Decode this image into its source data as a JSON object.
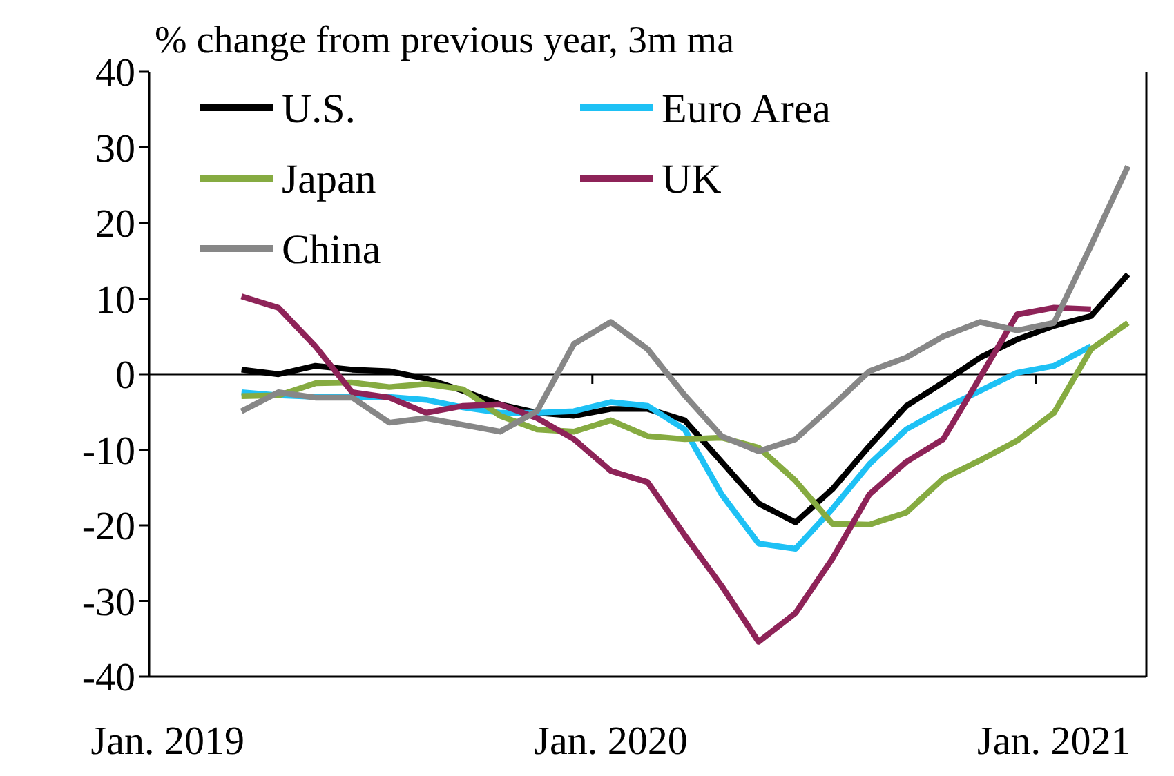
{
  "chart_data": {
    "type": "line",
    "title": "% change from previous year, 3m ma",
    "categories": [
      "Jan. 2019",
      null,
      null,
      null,
      null,
      null,
      null,
      null,
      null,
      null,
      null,
      null,
      "Jan. 2020",
      null,
      null,
      null,
      null,
      null,
      null,
      null,
      null,
      null,
      null,
      null,
      "Jan. 2021",
      null,
      null
    ],
    "series": [
      {
        "name": "U.S.",
        "color": "#000000",
        "values": [
          null,
          null,
          0.6,
          0,
          1.1,
          0.6,
          0.4,
          -0.6,
          -2.2,
          -4,
          -5.1,
          -5.5,
          -4.6,
          -4.6,
          -6.1,
          -11.6,
          -17.1,
          -19.6,
          -15.2,
          -9.5,
          -4.2,
          -1.1,
          2.2,
          4.6,
          6.4,
          7.7,
          13.2
        ]
      },
      {
        "name": "Euro Area",
        "color": "#1ec1f5",
        "values": [
          null,
          null,
          -2.4,
          -2.8,
          -3,
          -3,
          -3,
          -3.4,
          -4.4,
          -5.1,
          -5.1,
          -4.9,
          -3.7,
          -4.2,
          -7.3,
          -15.9,
          -22.4,
          -23.1,
          -17.8,
          -11.9,
          -7.3,
          -4.6,
          -2.2,
          0.2,
          1.1,
          3.7,
          null
        ]
      },
      {
        "name": "Japan",
        "color": "#86ab41",
        "values": [
          null,
          null,
          -2.9,
          -2.8,
          -1.2,
          -1.1,
          -1.7,
          -1.3,
          -2,
          -5.5,
          -7.3,
          -7.6,
          -6.1,
          -8.2,
          -8.6,
          -8.4,
          -9.7,
          -14.1,
          -19.8,
          -19.9,
          -18.3,
          -13.8,
          -11.4,
          -8.8,
          -5.1,
          3.3,
          6.8
        ]
      },
      {
        "name": "UK",
        "color": "#8e2358",
        "values": [
          null,
          null,
          10.3,
          8.8,
          3.7,
          -2.4,
          -3.1,
          -5.1,
          -4.2,
          -4,
          -5.8,
          -8.6,
          -12.8,
          -14.3,
          -21.3,
          -28,
          -35.4,
          -31.6,
          -24.4,
          -15.9,
          -11.6,
          -8.6,
          -0.4,
          7.9,
          8.8,
          8.6,
          null
        ]
      },
      {
        "name": "China",
        "color": "#878787",
        "values": [
          null,
          null,
          -4.9,
          -2.4,
          -3.1,
          -3.1,
          -6.4,
          -5.8,
          -6.7,
          -7.6,
          -4.9,
          4,
          6.9,
          3.3,
          -2.8,
          -8.2,
          -10.2,
          -8.6,
          -4.2,
          0.4,
          2.2,
          5,
          6.9,
          5.8,
          6.8,
          17,
          27.5
        ]
      }
    ],
    "ylim": [
      -40,
      40
    ],
    "yticks": [
      -40,
      -30,
      -20,
      -10,
      0,
      10,
      20,
      30,
      40
    ],
    "legend": "top left",
    "marker": "none",
    "line_style": "solid"
  }
}
